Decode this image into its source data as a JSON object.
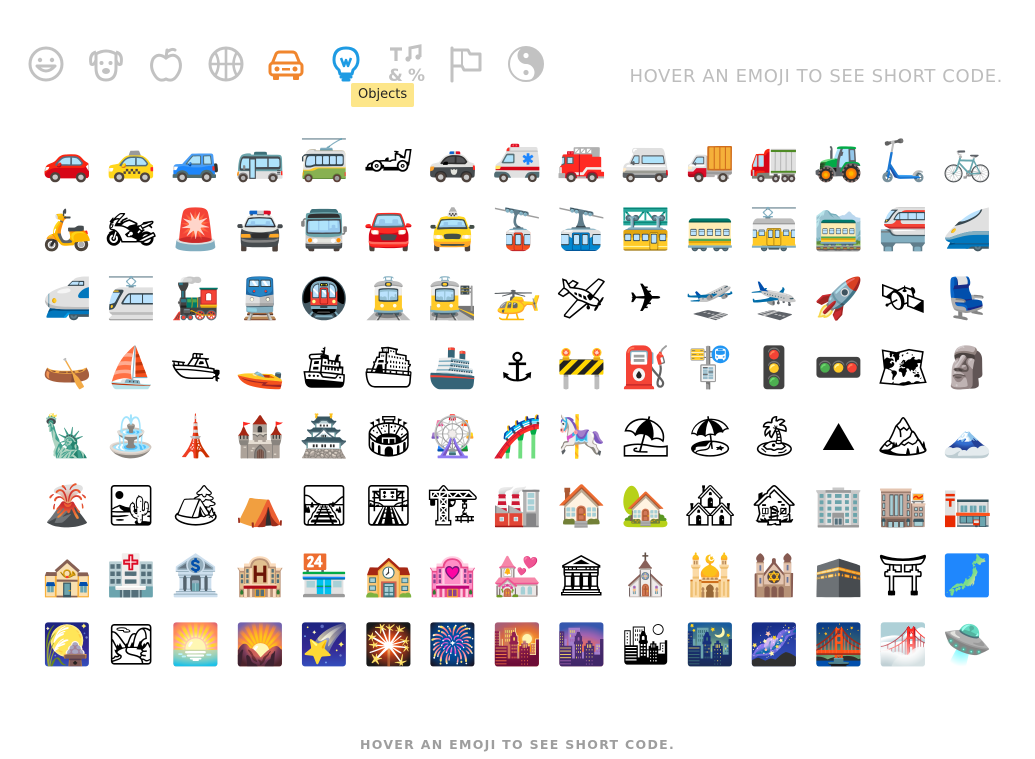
{
  "tooltip": "Objects",
  "hint_top": "HOVER AN EMOJI TO SEE SHORT CODE.",
  "hint_bottom": "HOVER AN EMOJI TO SEE SHORT CODE.",
  "colors": {
    "category_inactive": "#c2c2c2",
    "category_active_orange": "#f0862e",
    "category_active_blue": "#1e9be3",
    "tooltip_bg": "#fde68a"
  },
  "categories": [
    {
      "name": "smileys",
      "icon": "smiley-icon"
    },
    {
      "name": "animals",
      "icon": "dog-icon"
    },
    {
      "name": "food",
      "icon": "apple-icon"
    },
    {
      "name": "activity",
      "icon": "basketball-icon"
    },
    {
      "name": "travel",
      "icon": "car-icon",
      "state": "selected"
    },
    {
      "name": "objects",
      "icon": "lightbulb-icon",
      "state": "hovered"
    },
    {
      "name": "symbols",
      "icon": "symbols-icon"
    },
    {
      "name": "flags",
      "icon": "flags-icon"
    },
    {
      "name": "yin-yang",
      "icon": "yin-yang-icon"
    }
  ],
  "emojis": [
    "🚗",
    "🚕",
    "🚙",
    "🚌",
    "🚎",
    "🏎",
    "🚓",
    "🚑",
    "🚒",
    "🚐",
    "🚚",
    "🚛",
    "🚜",
    "🛴",
    "🚲",
    "🛵",
    "🏍",
    "🚨",
    "🚔",
    "🚍",
    "🚘",
    "🚖",
    "🚡",
    "🚠",
    "🚟",
    "🚃",
    "🚋",
    "🚞",
    "🚝",
    "🚄",
    "🚅",
    "🚈",
    "🚂",
    "🚆",
    "🚇",
    "🚊",
    "🚉",
    "🚁",
    "🛩",
    "✈",
    "🛫",
    "🛬",
    "🚀",
    "🛰",
    "💺",
    "🛶",
    "⛵",
    "🛥",
    "🚤",
    "🛳",
    "⛴",
    "🚢",
    "⚓",
    "🚧",
    "⛽",
    "🚏",
    "🚦",
    "🚥",
    "🗺",
    "🗿",
    "🗽",
    "⛲",
    "🗼",
    "🏰",
    "🏯",
    "🏟",
    "🎡",
    "🎢",
    "🎠",
    "⛱",
    "🏖",
    "🏝",
    "⛰",
    "🏔",
    "🗻",
    "🌋",
    "🏜",
    "🏕",
    "⛺",
    "🛤",
    "🛣",
    "🏗",
    "🏭",
    "🏠",
    "🏡",
    "🏘",
    "🏚",
    "🏢",
    "🏬",
    "🏣",
    "🏤",
    "🏥",
    "🏦",
    "🏨",
    "🏪",
    "🏫",
    "🏩",
    "💒",
    "🏛",
    "⛪",
    "🕌",
    "🕍",
    "🕋",
    "⛩",
    "🗾",
    "🎑",
    "🏞",
    "🌅",
    "🌄",
    "🌠",
    "🎇",
    "🎆",
    "🌇",
    "🌆",
    "🏙",
    "🌃",
    "🌌",
    "🌉",
    "🌁",
    "🛸"
  ]
}
